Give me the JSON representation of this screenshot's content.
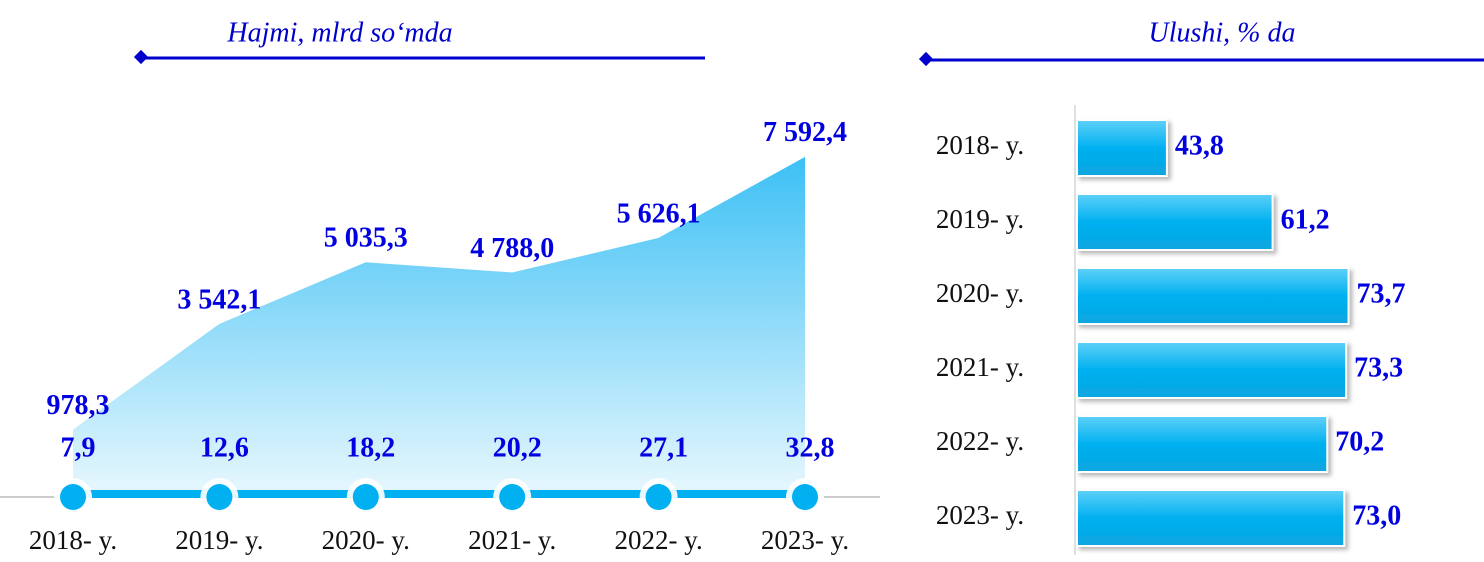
{
  "chart_data": [
    {
      "type": "area",
      "title": "Hajmi, mlrd so‘mda",
      "categories": [
        "2018- y.",
        "2019- y.",
        "2020- y.",
        "2021- y.",
        "2022- y.",
        "2023- y."
      ],
      "series": [
        {
          "color": "#29b6f6",
          "values": [
            978.3,
            3542.1,
            5035.3,
            4788.0,
            5626.1,
            7592.4
          ],
          "value_labels": [
            "978,3",
            "3 542,1",
            "5 035,3",
            "4 788,0",
            "5 626,1",
            "7 592,4"
          ]
        },
        {
          "color": "#00b0f0",
          "values": [
            7.9,
            12.6,
            18.2,
            20.2,
            27.1,
            32.8
          ],
          "value_labels": [
            "7,9",
            "12,6",
            "18,2",
            "20,2",
            "27,1",
            "32,8"
          ]
        }
      ],
      "ylim": [
        0,
        8000
      ]
    },
    {
      "type": "hbar",
      "title": "Ulushi, % da",
      "categories": [
        "2018- y.",
        "2019- y.",
        "2020- y.",
        "2021- y.",
        "2022- y.",
        "2023- y."
      ],
      "values": [
        43.8,
        61.2,
        73.7,
        73.3,
        70.2,
        73.0
      ],
      "value_labels": [
        "43,8",
        "61,2",
        "73,7",
        "73,3",
        "70,2",
        "73,0"
      ],
      "color": "#00b0f0",
      "xlim": [
        29,
        96
      ]
    }
  ]
}
